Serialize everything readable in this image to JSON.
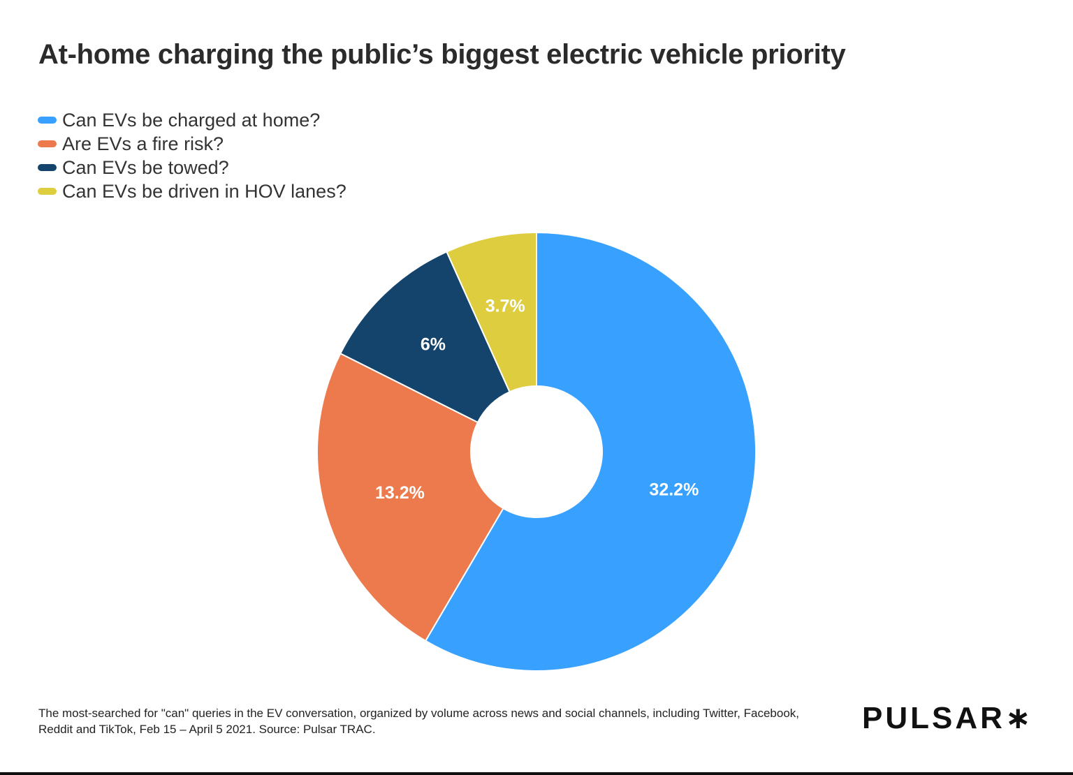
{
  "chart_data": {
    "type": "pie",
    "donut": true,
    "title": "At-home charging the public’s biggest electric vehicle priority",
    "legend_position": "top-left",
    "categories": [
      "Can EVs be charged at home?",
      "Are EVs a fire risk?",
      "Can EVs be towed?",
      "Can EVs be driven in HOV lanes?"
    ],
    "values": [
      32.2,
      13.2,
      6,
      3.7
    ],
    "labels": [
      "32.2%",
      "13.2%",
      "6%",
      "3.7%"
    ],
    "colors": [
      "#38a0fe",
      "#ec7a4d",
      "#14446b",
      "#ddcd3f"
    ]
  },
  "footnote": "The most-searched for \"can\" queries in the EV conversation, organized by volume across news and social channels, including Twitter, Facebook, Reddit and TikTok, Feb 15 – April 5 2021. Source: Pulsar TRAC.",
  "logo": "PULSAR∗"
}
